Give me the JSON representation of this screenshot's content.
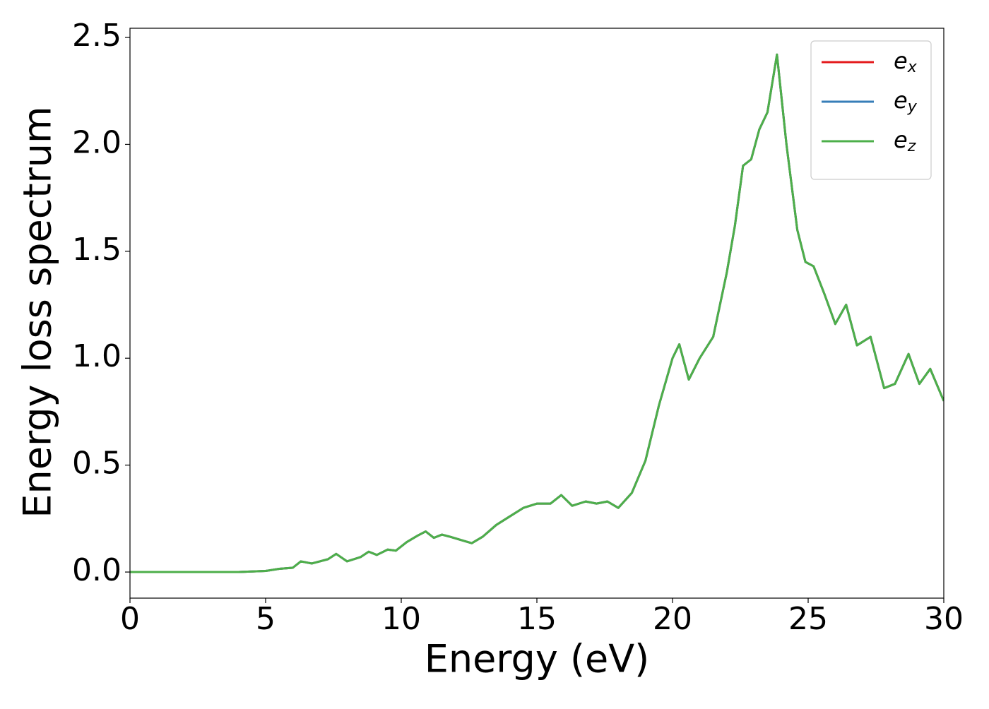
{
  "chart_data": {
    "type": "line",
    "xlabel": "Energy (eV)",
    "ylabel": "Energy loss spectrum",
    "x": [
      0,
      1,
      2,
      3,
      4,
      5,
      5.5,
      6,
      6.3,
      6.7,
      7,
      7.3,
      7.6,
      8,
      8.5,
      8.8,
      9.1,
      9.5,
      9.8,
      10.2,
      10.6,
      10.9,
      11.2,
      11.5,
      11.8,
      12.2,
      12.6,
      13,
      13.5,
      14,
      14.5,
      15,
      15.5,
      15.9,
      16.3,
      16.8,
      17.2,
      17.6,
      18,
      18.5,
      19,
      19.5,
      20,
      20.25,
      20.6,
      21,
      21.5,
      22,
      22.3,
      22.6,
      22.9,
      23.2,
      23.5,
      23.85,
      24.2,
      24.6,
      24.9,
      25.2,
      25.6,
      26,
      26.4,
      26.8,
      27.3,
      27.8,
      28.2,
      28.7,
      29.1,
      29.5,
      30
    ],
    "series": [
      {
        "name": "ex",
        "color": "#e41a1c",
        "values": [
          0,
          0,
          0,
          0,
          0,
          0.005,
          0.015,
          0.02,
          0.05,
          0.04,
          0.05,
          0.06,
          0.085,
          0.05,
          0.07,
          0.095,
          0.08,
          0.105,
          0.1,
          0.14,
          0.17,
          0.19,
          0.16,
          0.175,
          0.165,
          0.15,
          0.135,
          0.165,
          0.22,
          0.26,
          0.3,
          0.32,
          0.32,
          0.36,
          0.31,
          0.33,
          0.32,
          0.33,
          0.3,
          0.37,
          0.52,
          0.78,
          1.0,
          1.065,
          0.9,
          1.0,
          1.1,
          1.4,
          1.62,
          1.9,
          1.93,
          2.07,
          2.15,
          2.42,
          2.0,
          1.6,
          1.45,
          1.43,
          1.3,
          1.16,
          1.25,
          1.06,
          1.1,
          0.86,
          0.88,
          1.02,
          0.88,
          0.95,
          0.8
        ]
      },
      {
        "name": "ey",
        "color": "#377eb8",
        "values": [
          0,
          0,
          0,
          0,
          0,
          0.005,
          0.015,
          0.02,
          0.05,
          0.04,
          0.05,
          0.06,
          0.085,
          0.05,
          0.07,
          0.095,
          0.08,
          0.105,
          0.1,
          0.14,
          0.17,
          0.19,
          0.16,
          0.175,
          0.165,
          0.15,
          0.135,
          0.165,
          0.22,
          0.26,
          0.3,
          0.32,
          0.32,
          0.36,
          0.31,
          0.33,
          0.32,
          0.33,
          0.3,
          0.37,
          0.52,
          0.78,
          1.0,
          1.065,
          0.9,
          1.0,
          1.1,
          1.4,
          1.62,
          1.9,
          1.93,
          2.07,
          2.15,
          2.42,
          2.0,
          1.6,
          1.45,
          1.43,
          1.3,
          1.16,
          1.25,
          1.06,
          1.1,
          0.86,
          0.88,
          1.02,
          0.88,
          0.95,
          0.8
        ]
      },
      {
        "name": "ez",
        "color": "#4daf4a",
        "values": [
          0,
          0,
          0,
          0,
          0,
          0.005,
          0.015,
          0.02,
          0.05,
          0.04,
          0.05,
          0.06,
          0.085,
          0.05,
          0.07,
          0.095,
          0.08,
          0.105,
          0.1,
          0.14,
          0.17,
          0.19,
          0.16,
          0.175,
          0.165,
          0.15,
          0.135,
          0.165,
          0.22,
          0.26,
          0.3,
          0.32,
          0.32,
          0.36,
          0.31,
          0.33,
          0.32,
          0.33,
          0.3,
          0.37,
          0.52,
          0.78,
          1.0,
          1.065,
          0.9,
          1.0,
          1.1,
          1.4,
          1.62,
          1.9,
          1.93,
          2.07,
          2.15,
          2.42,
          2.0,
          1.6,
          1.45,
          1.43,
          1.3,
          1.16,
          1.25,
          1.06,
          1.1,
          0.86,
          0.88,
          1.02,
          0.88,
          0.95,
          0.8
        ]
      }
    ],
    "xlim": [
      0,
      30
    ],
    "xticks": [
      0,
      5,
      10,
      15,
      20,
      25,
      30
    ],
    "ylim": [
      -0.122,
      2.543
    ],
    "yticks": [
      {
        "value": 0,
        "label": "0.0"
      },
      {
        "value": 0.5,
        "label": "0.5"
      },
      {
        "value": 1,
        "label": "1.0"
      },
      {
        "value": 1.5,
        "label": "1.5"
      },
      {
        "value": 2,
        "label": "2.0"
      },
      {
        "value": 2.5,
        "label": "2.5"
      }
    ],
    "legend": "upper right",
    "grid": false
  }
}
